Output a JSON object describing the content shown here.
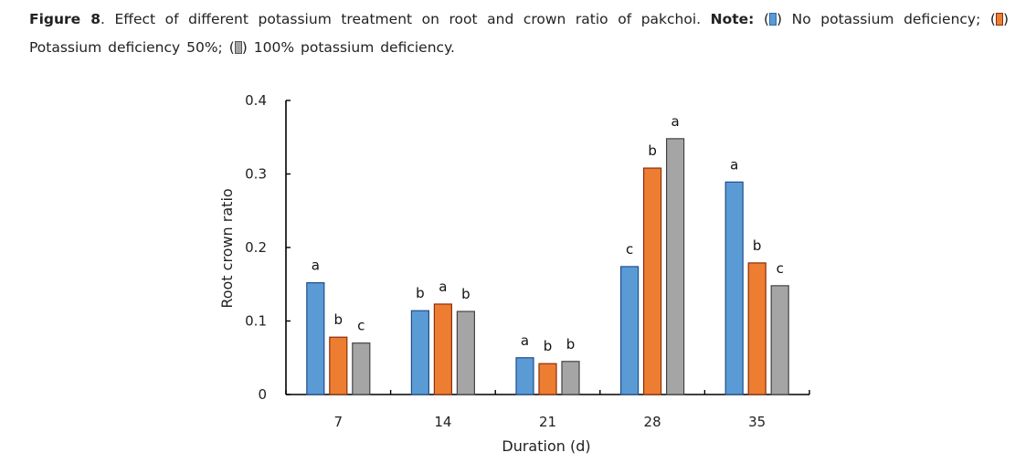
{
  "caption": {
    "figure_label": "Figure 8",
    "text": ". Effect of different potassium treatment on root and crown ratio of pakchoi. ",
    "note_label": "Note:",
    "legend_items": [
      {
        "text": " No potassium deficiency; ",
        "color": "#5b9bd5"
      },
      {
        "text": " Potassium deficiency 50%; ",
        "color": "#ed7d31"
      },
      {
        "text": " 100% potassium deficiency.",
        "color": "#a5a5a5"
      }
    ]
  },
  "chart_data": {
    "type": "bar",
    "title": "",
    "xlabel": "Duration (d)",
    "ylabel": "Root crown ratio",
    "ylim": [
      0,
      0.4
    ],
    "yticks": [
      0,
      0.1,
      0.2,
      0.3,
      0.4
    ],
    "ytick_labels": [
      "0",
      "0.1",
      "0.2",
      "0.3",
      "0.4"
    ],
    "grid": false,
    "legend": "in caption",
    "categories": [
      "7",
      "14",
      "21",
      "28",
      "35"
    ],
    "series": [
      {
        "name": "No potassium deficiency",
        "color": "#5b9bd5",
        "edge": "#1f4e8c",
        "values": [
          0.152,
          0.114,
          0.05,
          0.174,
          0.289
        ],
        "labels": [
          "a",
          "b",
          "a",
          "c",
          "a"
        ]
      },
      {
        "name": "Potassium deficiency 50%",
        "color": "#ed7d31",
        "edge": "#8b2e0a",
        "values": [
          0.078,
          0.123,
          0.042,
          0.308,
          0.179
        ],
        "labels": [
          "b",
          "a",
          "b",
          "b",
          "b"
        ]
      },
      {
        "name": "100% potassium deficiency",
        "color": "#a5a5a5",
        "edge": "#444444",
        "values": [
          0.07,
          0.113,
          0.045,
          0.348,
          0.148
        ],
        "labels": [
          "c",
          "b",
          "b",
          "a",
          "c"
        ]
      }
    ]
  }
}
